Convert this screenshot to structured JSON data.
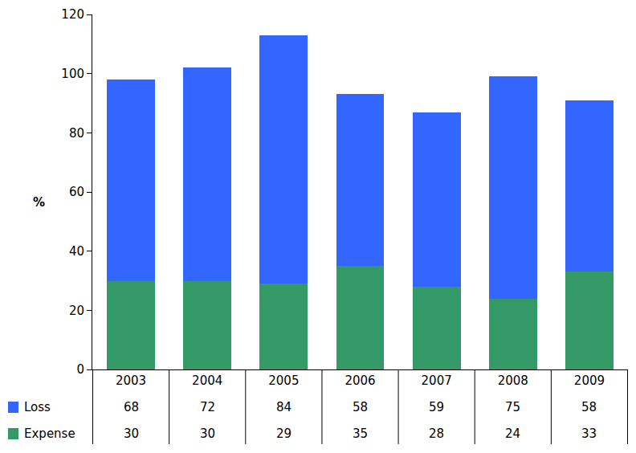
{
  "chart_data": {
    "type": "bar",
    "stacked": true,
    "ylabel": "%",
    "categories": [
      "2003",
      "2004",
      "2005",
      "2006",
      "2007",
      "2008",
      "2009"
    ],
    "series": [
      {
        "name": "Loss",
        "color": "#3366ff",
        "values": [
          68,
          72,
          84,
          58,
          59,
          75,
          58
        ]
      },
      {
        "name": "Expense",
        "color": "#339966",
        "values": [
          30,
          30,
          29,
          35,
          28,
          24,
          33
        ]
      }
    ],
    "ylim": [
      0,
      120
    ],
    "yticks": [
      0,
      20,
      40,
      60,
      80,
      100,
      120
    ],
    "grid": false,
    "legend": "bottom"
  }
}
